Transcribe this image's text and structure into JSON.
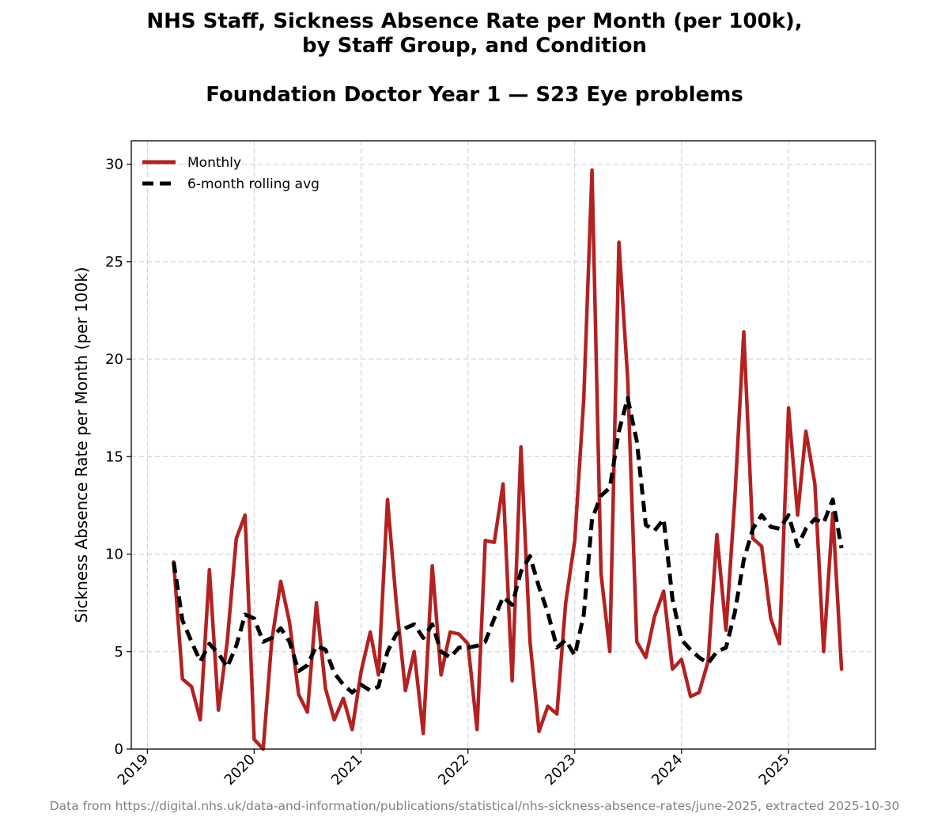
{
  "chart_data": {
    "type": "line",
    "title": [
      "NHS Staff, Sickness Absence Rate per Month (per 100k),",
      "by Staff Group, and Condition"
    ],
    "subtitle": "Foundation Doctor Year 1 — S23 Eye problems",
    "ylabel": "Sickness Absence Rate per Month (per 100k)",
    "xlabel": "",
    "ylim": [
      0,
      31.2
    ],
    "xlim": [
      "2018-11-07",
      "2025-10-25"
    ],
    "y_ticks": [
      0,
      5,
      10,
      15,
      20,
      25,
      30
    ],
    "x_ticks": [
      "2019",
      "2020",
      "2021",
      "2022",
      "2023",
      "2024",
      "2025"
    ],
    "grid": true,
    "legend_position": "top-left",
    "series": [
      {
        "name": "Monthly",
        "color": "#b22222",
        "style": "solid",
        "start": "2019-04",
        "values": [
          9.6,
          3.6,
          3.2,
          1.5,
          9.2,
          2.0,
          5.5,
          10.8,
          12.0,
          0.5,
          0.0,
          5.5,
          8.6,
          6.5,
          2.8,
          1.9,
          7.5,
          3.1,
          1.5,
          2.6,
          1.0,
          4.0,
          6.0,
          3.8,
          12.8,
          7.5,
          3.0,
          5.0,
          0.8,
          9.4,
          3.8,
          6.0,
          5.9,
          5.4,
          1.0,
          10.7,
          10.6,
          13.6,
          3.5,
          15.5,
          5.5,
          0.9,
          2.2,
          1.8,
          7.5,
          10.7,
          18.0,
          29.7,
          9.0,
          5.0,
          26.0,
          19.0,
          5.5,
          4.7,
          6.8,
          8.1,
          4.1,
          4.6,
          2.7,
          2.9,
          4.5,
          11.0,
          6.1,
          12.8,
          21.4,
          10.8,
          10.4,
          6.7,
          5.4,
          17.5,
          12.0,
          16.3,
          13.6,
          5.0,
          12.1,
          4.1
        ]
      },
      {
        "name": "6-month rolling avg",
        "color": "#000000",
        "style": "dashed",
        "start": "2019-04",
        "values": [
          9.6,
          6.6,
          5.5,
          4.5,
          5.4,
          4.9,
          4.2,
          5.3,
          6.9,
          6.7,
          5.5,
          5.7,
          6.2,
          5.5,
          4.0,
          4.3,
          5.3,
          5.1,
          3.9,
          3.3,
          2.9,
          3.3,
          3.0,
          3.2,
          5.0,
          5.9,
          6.2,
          6.4,
          5.7,
          6.4,
          5.0,
          4.7,
          5.2,
          5.2,
          5.3,
          5.5,
          6.7,
          7.8,
          7.4,
          9.1,
          9.9,
          8.3,
          7.0,
          5.2,
          5.6,
          4.8,
          6.9,
          11.8,
          13.0,
          13.4,
          16.3,
          18.0,
          15.8,
          11.5,
          11.2,
          11.8,
          7.7,
          5.6,
          5.1,
          4.7,
          4.4,
          5.0,
          5.2,
          7.0,
          9.7,
          11.3,
          12.0,
          11.4,
          11.3,
          12.0,
          10.4,
          11.3,
          11.8,
          11.6,
          12.8,
          10.3
        ]
      }
    ]
  },
  "footer": "Data from https://digital.nhs.uk/data-and-information/publications/statistical/nhs-sickness-absence-rates/june-2025, extracted 2025-10-30"
}
